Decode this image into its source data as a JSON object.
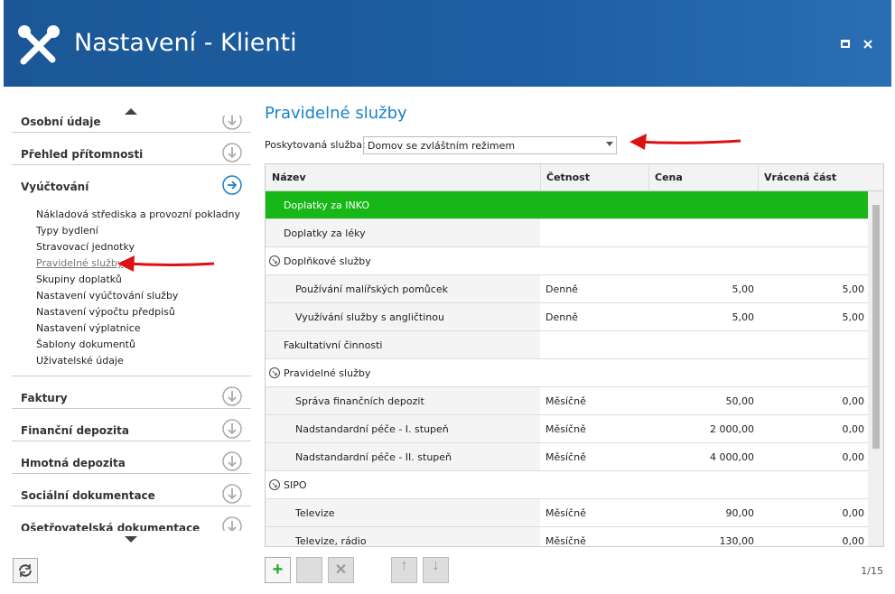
{
  "header": {
    "title": "Nastavení - Klienti"
  },
  "sidebar": {
    "sections": [
      {
        "label": "Osobní údaje"
      },
      {
        "label": "Přehled přítomnosti"
      },
      {
        "label": "Vyúčtování",
        "items": [
          "Nákladová střediska a provozní pokladny",
          "Typy bydlení",
          "Stravovací jednotky",
          "Pravidelné služby",
          "Skupiny doplatků",
          "Nastavení vyúčtování služby",
          "Nastavení výpočtu předpisů",
          "Nastavení výplatnice",
          "Šablony dokumentů",
          "Uživatelské údaje"
        ]
      },
      {
        "label": "Faktury"
      },
      {
        "label": "Finanční depozita"
      },
      {
        "label": "Hmotná depozita"
      },
      {
        "label": "Sociální dokumentace"
      },
      {
        "label": "Ošetřovatelská dokumentace"
      }
    ]
  },
  "main": {
    "title": "Pravidelné služby",
    "filter": {
      "label": "Poskytovaná služba:",
      "value": "Domov se zvláštním režimem"
    },
    "table": {
      "columns": [
        "Název",
        "Četnost",
        "Cena",
        "Vrácená část"
      ],
      "rows": [
        [
          "Doplatky za INKO"
        ],
        [
          "Doplatky za léky"
        ],
        [
          "Doplňkové služby"
        ],
        [
          "Používání malířských pomůcek",
          "Denně",
          "5,00",
          "5,00"
        ],
        [
          "Využívání služby s angličtinou",
          "Denně",
          "5,00",
          "5,00"
        ],
        [
          "Fakultativní činnosti"
        ],
        [
          "Pravidelné služby"
        ],
        [
          "Správa finančních depozit",
          "Měsíčně",
          "50,00",
          "0,00"
        ],
        [
          "Nadstandardní péče - I. stupeň",
          "Měsíčně",
          "2 000,00",
          "0,00"
        ],
        [
          "Nadstandardní péče - II. stupeň",
          "Měsíčně",
          "4 000,00",
          "0,00"
        ],
        [
          "SIPO"
        ],
        [
          "Televize",
          "Měsíčně",
          "90,00",
          "0,00"
        ],
        [
          "Televize, rádio",
          "Měsíčně",
          "130,00",
          "0,00"
        ]
      ]
    },
    "pager": "1/15"
  }
}
